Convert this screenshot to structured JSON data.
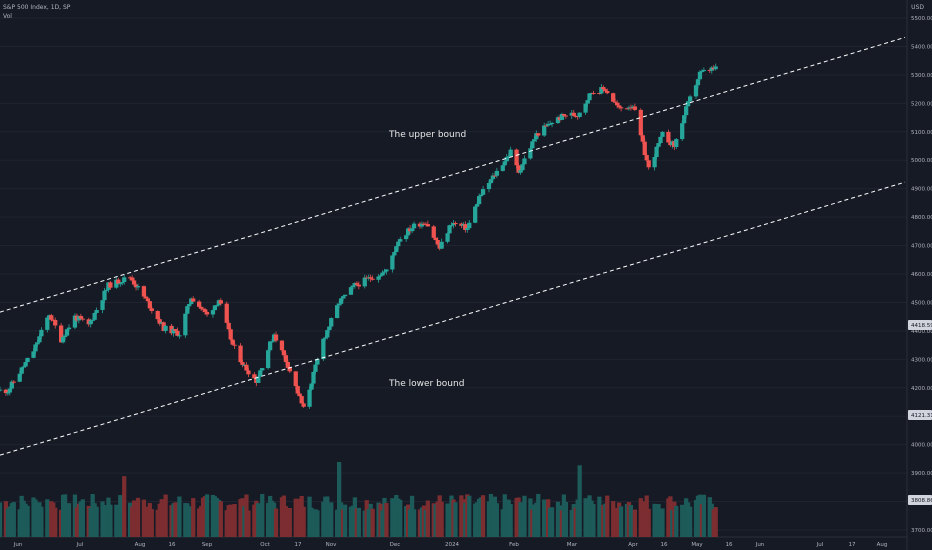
{
  "header": {
    "symbol": "S&P 500 Index, 1D, SP",
    "vol_label": "Vol"
  },
  "currency": "USD",
  "colors": {
    "background": "#161a25",
    "up": "#26a69a",
    "down": "#ef5350",
    "vol_up": "#1c5b59",
    "vol_down": "#7c2d30",
    "grid": "#1f2430",
    "channel": "#ffffff"
  },
  "chart_data": {
    "type": "candlestick",
    "title": "S&P 500 Index, 1D, SP",
    "y_axis": {
      "ticks": [
        5500,
        5400,
        5300,
        5200,
        5100,
        5000,
        4900,
        4800,
        4700,
        4600,
        4500,
        4400,
        4300,
        4200,
        4100,
        4000,
        3900,
        3800,
        3700
      ],
      "labels": [
        "5500.00",
        "5400.00",
        "5300.00",
        "5200.00",
        "5100.00",
        "5000.00",
        "4900.00",
        "4800.00",
        "4700.00",
        "4600.00",
        "4500.00",
        "4400.00",
        "4300.00",
        "4200.00",
        "4100.00",
        "4000.00",
        "3900.00",
        "3800.00",
        "3700.00"
      ],
      "range": [
        3680,
        5520
      ]
    },
    "x_axis": {
      "labels": [
        "Jun",
        "Jul",
        "Aug",
        "16",
        "Sep",
        "Oct",
        "17",
        "Nov",
        "Dec",
        "2024",
        "Feb",
        "Mar",
        "Apr",
        "16",
        "May",
        "16",
        "Jun",
        "Jul",
        "17",
        "Aug"
      ],
      "range": [
        "2023-05-26",
        "2024-08-27"
      ]
    },
    "price_badges": [
      {
        "value": "4418.59"
      },
      {
        "value": "4121.31"
      },
      {
        "value": "3808.86"
      }
    ],
    "annotations": [
      {
        "text": "The upper bound"
      },
      {
        "text": "The lower bound"
      }
    ],
    "channel_lines": [
      {
        "name": "upper",
        "points": [
          [
            "2023-05-26",
            4466
          ],
          [
            "2024-08-27",
            5432
          ]
        ]
      },
      {
        "name": "lower",
        "points": [
          [
            "2023-05-26",
            3963
          ],
          [
            "2024-08-27",
            4923
          ]
        ]
      }
    ],
    "anchors": [
      [
        "2023-05-30",
        4190
      ],
      [
        "2023-06-12",
        4330
      ],
      [
        "2023-06-20",
        4460
      ],
      [
        "2023-06-26",
        4370
      ],
      [
        "2023-07-03",
        4450
      ],
      [
        "2023-07-10",
        4420
      ],
      [
        "2023-07-20",
        4560
      ],
      [
        "2023-07-31",
        4590
      ],
      [
        "2023-08-08",
        4510
      ],
      [
        "2023-08-17",
        4410
      ],
      [
        "2023-08-25",
        4390
      ],
      [
        "2023-08-31",
        4520
      ],
      [
        "2023-09-08",
        4455
      ],
      [
        "2023-09-14",
        4510
      ],
      [
        "2023-09-21",
        4350
      ],
      [
        "2023-09-27",
        4275
      ],
      [
        "2023-10-03",
        4225
      ],
      [
        "2023-10-12",
        4390
      ],
      [
        "2023-10-19",
        4280
      ],
      [
        "2023-10-27",
        4125
      ],
      [
        "2023-11-06",
        4370
      ],
      [
        "2023-11-14",
        4500
      ],
      [
        "2023-11-22",
        4560
      ],
      [
        "2023-12-01",
        4590
      ],
      [
        "2023-12-08",
        4610
      ],
      [
        "2023-12-14",
        4720
      ],
      [
        "2023-12-22",
        4770
      ],
      [
        "2023-12-28",
        4785
      ],
      [
        "2024-01-04",
        4690
      ],
      [
        "2024-01-10",
        4780
      ],
      [
        "2024-01-18",
        4760
      ],
      [
        "2024-01-24",
        4870
      ],
      [
        "2024-02-02",
        4960
      ],
      [
        "2024-02-09",
        5030
      ],
      [
        "2024-02-13",
        4960
      ],
      [
        "2024-02-22",
        5090
      ],
      [
        "2024-03-01",
        5135
      ],
      [
        "2024-03-08",
        5160
      ],
      [
        "2024-03-14",
        5160
      ],
      [
        "2024-03-21",
        5240
      ],
      [
        "2024-03-28",
        5250
      ],
      [
        "2024-04-04",
        5180
      ],
      [
        "2024-04-11",
        5195
      ],
      [
        "2024-04-19",
        4970
      ],
      [
        "2024-04-26",
        5090
      ],
      [
        "2024-05-02",
        5050
      ],
      [
        "2024-05-08",
        5180
      ],
      [
        "2024-05-15",
        5305
      ],
      [
        "2024-05-21",
        5320
      ]
    ]
  }
}
